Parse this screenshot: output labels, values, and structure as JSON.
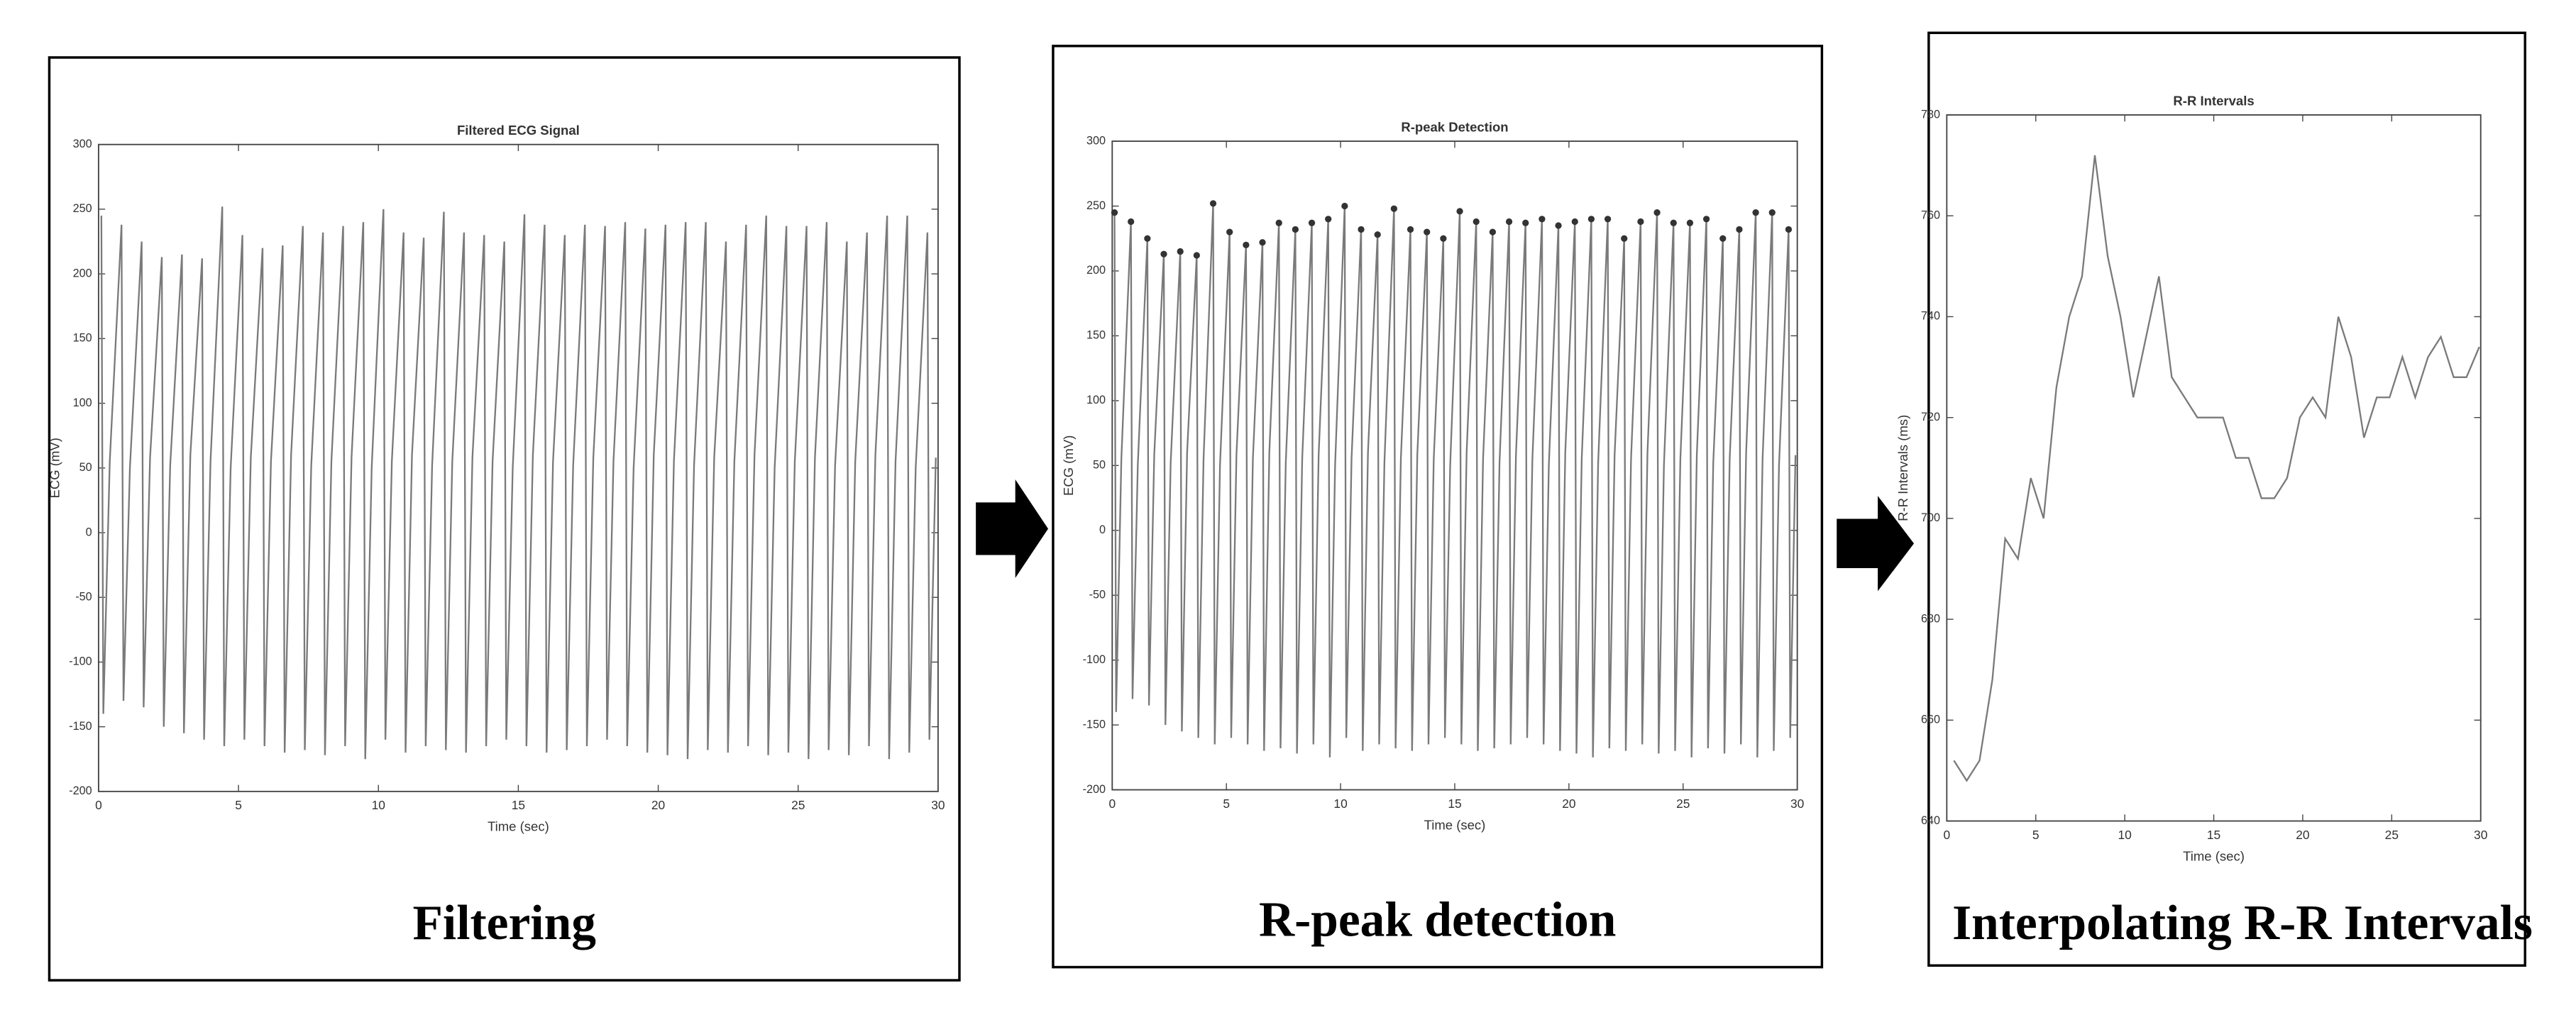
{
  "chart_data": [
    {
      "type": "line",
      "title": "Filtered ECG Signal",
      "xlabel": "Time (sec)",
      "ylabel": "ECG (mV)",
      "xlim": [
        0,
        30
      ],
      "ylim": [
        -200,
        300
      ],
      "xticks": [
        0,
        5,
        10,
        15,
        20,
        25,
        30
      ],
      "yticks": [
        -200,
        -150,
        -100,
        -50,
        0,
        50,
        100,
        150,
        200,
        250,
        300
      ],
      "series": [
        {
          "color": "#7a7a7a",
          "line": true,
          "marker": false,
          "x": [
            0.1,
            0.17,
            0.4,
            0.82,
            0.89,
            1.12,
            1.54,
            1.61,
            1.84,
            2.26,
            2.33,
            2.56,
            2.98,
            3.05,
            3.28,
            3.7,
            3.77,
            4.0,
            4.42,
            4.49,
            4.72,
            5.14,
            5.21,
            5.44,
            5.86,
            5.93,
            6.16,
            6.58,
            6.65,
            6.88,
            7.3,
            7.37,
            7.6,
            8.02,
            8.09,
            8.32,
            8.74,
            8.81,
            9.04,
            9.46,
            9.53,
            9.76,
            10.18,
            10.25,
            10.48,
            10.9,
            10.97,
            11.2,
            11.62,
            11.69,
            11.92,
            12.34,
            12.41,
            12.64,
            13.06,
            13.13,
            13.36,
            13.78,
            13.85,
            14.08,
            14.5,
            14.57,
            14.8,
            15.22,
            15.29,
            15.52,
            15.94,
            16.01,
            16.24,
            16.66,
            16.73,
            16.96,
            17.38,
            17.45,
            17.68,
            18.1,
            18.17,
            18.4,
            18.82,
            18.89,
            19.12,
            19.54,
            19.61,
            19.84,
            20.26,
            20.33,
            20.56,
            20.98,
            21.05,
            21.28,
            21.7,
            21.77,
            22.0,
            22.42,
            22.49,
            22.72,
            23.14,
            23.21,
            23.44,
            23.86,
            23.93,
            24.16,
            24.58,
            24.65,
            24.88,
            25.3,
            25.37,
            25.6,
            26.02,
            26.09,
            26.32,
            26.74,
            26.81,
            27.04,
            27.46,
            27.53,
            27.76,
            28.18,
            28.25,
            28.48,
            28.9,
            28.97,
            29.2,
            29.62,
            29.69,
            29.92
          ],
          "values": [
            245,
            -140,
            55,
            238,
            -130,
            50,
            225,
            -135,
            58,
            213,
            -150,
            52,
            215,
            -155,
            60,
            212,
            -160,
            55,
            252,
            -165,
            50,
            230,
            -160,
            58,
            220,
            -165,
            55,
            222,
            -170,
            60,
            237,
            -168,
            52,
            232,
            -172,
            55,
            237,
            -165,
            58,
            240,
            -175,
            50,
            250,
            -160,
            55,
            232,
            -170,
            60,
            228,
            -165,
            52,
            248,
            -168,
            55,
            232,
            -170,
            58,
            230,
            -165,
            55,
            225,
            -160,
            50,
            246,
            -165,
            60,
            238,
            -170,
            55,
            230,
            -168,
            52,
            238,
            -165,
            58,
            237,
            -160,
            55,
            240,
            -165,
            50,
            235,
            -170,
            60,
            238,
            -172,
            55,
            240,
            -175,
            52,
            240,
            -168,
            58,
            225,
            -170,
            55,
            238,
            -165,
            60,
            245,
            -172,
            50,
            237,
            -170,
            55,
            237,
            -175,
            58,
            240,
            -168,
            52,
            225,
            -172,
            55,
            232,
            -165,
            60,
            245,
            -175,
            55,
            245,
            -170,
            50,
            232,
            -160,
            58
          ]
        }
      ]
    },
    {
      "type": "line",
      "title": "R-peak Detection",
      "xlabel": "Time (sec)",
      "ylabel": "ECG (mV)",
      "xlim": [
        0,
        30
      ],
      "ylim": [
        -200,
        300
      ],
      "xticks": [
        0,
        5,
        10,
        15,
        20,
        25,
        30
      ],
      "yticks": [
        -200,
        -150,
        -100,
        -50,
        0,
        50,
        100,
        150,
        200,
        250,
        300
      ],
      "series": [
        {
          "color": "#7a7a7a",
          "line": true,
          "marker": false,
          "x": [
            0.1,
            0.17,
            0.4,
            0.82,
            0.89,
            1.12,
            1.54,
            1.61,
            1.84,
            2.26,
            2.33,
            2.56,
            2.98,
            3.05,
            3.28,
            3.7,
            3.77,
            4.0,
            4.42,
            4.49,
            4.72,
            5.14,
            5.21,
            5.44,
            5.86,
            5.93,
            6.16,
            6.58,
            6.65,
            6.88,
            7.3,
            7.37,
            7.6,
            8.02,
            8.09,
            8.32,
            8.74,
            8.81,
            9.04,
            9.46,
            9.53,
            9.76,
            10.18,
            10.25,
            10.48,
            10.9,
            10.97,
            11.2,
            11.62,
            11.69,
            11.92,
            12.34,
            12.41,
            12.64,
            13.06,
            13.13,
            13.36,
            13.78,
            13.85,
            14.08,
            14.5,
            14.57,
            14.8,
            15.22,
            15.29,
            15.52,
            15.94,
            16.01,
            16.24,
            16.66,
            16.73,
            16.96,
            17.38,
            17.45,
            17.68,
            18.1,
            18.17,
            18.4,
            18.82,
            18.89,
            19.12,
            19.54,
            19.61,
            19.84,
            20.26,
            20.33,
            20.56,
            20.98,
            21.05,
            21.28,
            21.7,
            21.77,
            22.0,
            22.42,
            22.49,
            22.72,
            23.14,
            23.21,
            23.44,
            23.86,
            23.93,
            24.16,
            24.58,
            24.65,
            24.88,
            25.3,
            25.37,
            25.6,
            26.02,
            26.09,
            26.32,
            26.74,
            26.81,
            27.04,
            27.46,
            27.53,
            27.76,
            28.18,
            28.25,
            28.48,
            28.9,
            28.97,
            29.2,
            29.62,
            29.69,
            29.92
          ],
          "values": [
            245,
            -140,
            55,
            238,
            -130,
            50,
            225,
            -135,
            58,
            213,
            -150,
            52,
            215,
            -155,
            60,
            212,
            -160,
            55,
            252,
            -165,
            50,
            230,
            -160,
            58,
            220,
            -165,
            55,
            222,
            -170,
            60,
            237,
            -168,
            52,
            232,
            -172,
            55,
            237,
            -165,
            58,
            240,
            -175,
            50,
            250,
            -160,
            55,
            232,
            -170,
            60,
            228,
            -165,
            52,
            248,
            -168,
            55,
            232,
            -170,
            58,
            230,
            -165,
            55,
            225,
            -160,
            50,
            246,
            -165,
            60,
            238,
            -170,
            55,
            230,
            -168,
            52,
            238,
            -165,
            58,
            237,
            -160,
            55,
            240,
            -165,
            50,
            235,
            -170,
            60,
            238,
            -172,
            55,
            240,
            -175,
            52,
            240,
            -168,
            58,
            225,
            -170,
            55,
            238,
            -165,
            60,
            245,
            -172,
            50,
            237,
            -170,
            55,
            237,
            -175,
            58,
            240,
            -168,
            52,
            225,
            -172,
            55,
            232,
            -165,
            60,
            245,
            -175,
            55,
            245,
            -170,
            50,
            232,
            -160,
            58
          ]
        },
        {
          "color": "#333333",
          "line": false,
          "marker": true,
          "x": [
            0.1,
            0.82,
            1.54,
            2.26,
            2.98,
            3.7,
            4.42,
            5.14,
            5.86,
            6.58,
            7.3,
            8.02,
            8.74,
            9.46,
            10.18,
            10.9,
            11.62,
            12.34,
            13.06,
            13.78,
            14.5,
            15.22,
            15.94,
            16.66,
            17.38,
            18.1,
            18.82,
            19.54,
            20.26,
            20.98,
            21.7,
            22.42,
            23.14,
            23.86,
            24.58,
            25.3,
            26.02,
            26.74,
            27.46,
            28.18,
            28.9,
            29.62
          ],
          "values": [
            245,
            238,
            225,
            213,
            215,
            212,
            252,
            230,
            220,
            222,
            237,
            232,
            237,
            240,
            250,
            232,
            228,
            248,
            232,
            230,
            225,
            246,
            238,
            230,
            238,
            237,
            240,
            235,
            238,
            240,
            240,
            225,
            238,
            245,
            237,
            237,
            240,
            225,
            232,
            245,
            245,
            232
          ]
        }
      ]
    },
    {
      "type": "line",
      "title": "R-R Intervals",
      "xlabel": "Time (sec)",
      "ylabel": "R-R Intervals (ms)",
      "xlim": [
        0,
        30
      ],
      "ylim": [
        640,
        780
      ],
      "xticks": [
        0,
        5,
        10,
        15,
        20,
        25,
        30
      ],
      "yticks": [
        640,
        660,
        680,
        700,
        720,
        740,
        760,
        780
      ],
      "series": [
        {
          "color": "#7a7a7a",
          "line": true,
          "marker": false,
          "x": [
            0.4,
            1.12,
            1.84,
            2.56,
            3.28,
            4.0,
            4.72,
            5.44,
            6.16,
            6.88,
            7.6,
            8.32,
            9.04,
            9.76,
            10.48,
            11.2,
            11.92,
            12.64,
            13.36,
            14.08,
            14.8,
            15.52,
            16.24,
            16.96,
            17.68,
            18.4,
            19.12,
            19.84,
            20.56,
            21.28,
            22.0,
            22.72,
            23.44,
            24.16,
            24.88,
            25.6,
            26.32,
            27.04,
            27.76,
            28.48,
            29.2,
            29.92
          ],
          "values": [
            652,
            648,
            652,
            668,
            696,
            692,
            708,
            700,
            726,
            740,
            748,
            772,
            752,
            740,
            724,
            736,
            748,
            728,
            724,
            720,
            720,
            720,
            712,
            712,
            704,
            704,
            708,
            720,
            724,
            720,
            740,
            732,
            716,
            724,
            724,
            732,
            724,
            732,
            736,
            728,
            728,
            734
          ]
        }
      ]
    }
  ],
  "captions": [
    "Filtering",
    "R-peak detection",
    "Interpolating R-R Intervals"
  ]
}
